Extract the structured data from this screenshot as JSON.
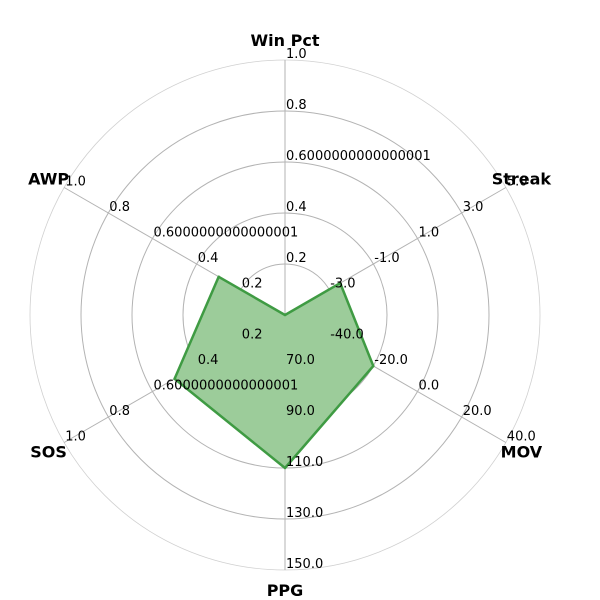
{
  "chart_data": {
    "type": "radar",
    "title": "",
    "grid": true,
    "fill_color": "#9ccc9a",
    "line_color": "#3f9b43",
    "axes": [
      {
        "name": "Win Pct",
        "ticks": [
          "0.2",
          "0.4",
          "0.6000000000000001",
          "0.8",
          "1.0"
        ],
        "range": [
          0.0,
          1.0
        ],
        "value": 0.0
      },
      {
        "name": "Streak",
        "ticks": [
          "-3.0",
          "-1.0",
          "1.0",
          "3.0",
          "5.0"
        ],
        "range": [
          -5.0,
          5.0
        ],
        "value": -2.5
      },
      {
        "name": "MOV",
        "ticks": [
          "-40.0",
          "-20.0",
          "0.0",
          "20.0",
          "40.0"
        ],
        "range": [
          -60.0,
          40.0
        ],
        "value": -20.0
      },
      {
        "name": "PPG",
        "ticks": [
          "70.0",
          "90.0",
          "110.0",
          "130.0",
          "150.0"
        ],
        "range": [
          50.0,
          150.0
        ],
        "value": 110.0
      },
      {
        "name": "SOS",
        "ticks": [
          "0.2",
          "0.4",
          "0.6000000000000001",
          "0.8",
          "1.0"
        ],
        "range": [
          0.0,
          1.0
        ],
        "value": 0.5
      },
      {
        "name": "AWP",
        "ticks": [
          "0.2",
          "0.4",
          "0.6000000000000001",
          "0.8",
          "1.0"
        ],
        "range": [
          0.0,
          1.0
        ],
        "value": 0.3
      }
    ]
  }
}
